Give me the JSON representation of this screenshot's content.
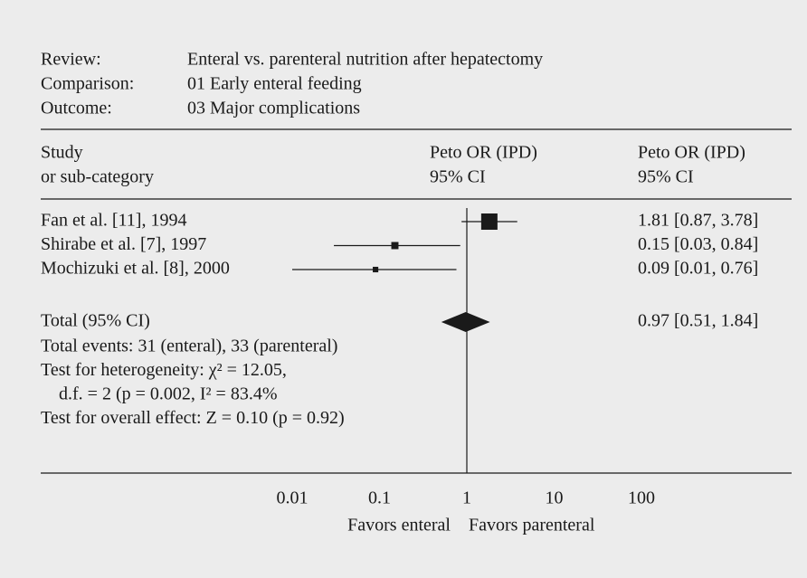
{
  "chart_data": {
    "type": "forest",
    "review_label": "Review:",
    "review": "Enteral vs. parenteral nutrition after hepatectomy",
    "comparison_label": "Comparison:",
    "comparison": "01 Early enteral feeding",
    "outcome_label": "Outcome:",
    "outcome": "03 Major complications",
    "study_header": [
      "Study",
      "or sub-category"
    ],
    "plot_header": [
      "Peto OR (IPD)",
      "95% CI"
    ],
    "value_header": [
      "Peto OR (IPD)",
      "95% CI"
    ],
    "categories": [
      "Fan et al. [11], 1994",
      "Shirabe et al. [7], 1997",
      "Mochizuki et al. [8], 2000"
    ],
    "values": [
      1.81,
      0.15,
      0.09
    ],
    "ci_lower": [
      0.87,
      0.03,
      0.01
    ],
    "ci_upper": [
      3.78,
      0.84,
      0.76
    ],
    "value_labels": [
      "1.81 [0.87, 3.78]",
      "0.15 [0.03, 0.84]",
      "0.09 [0.01, 0.76]"
    ],
    "total": {
      "label": "Total (95% CI)",
      "value": 0.97,
      "ci_lower": 0.51,
      "ci_upper": 1.84,
      "value_label": "0.97 [0.51, 1.84]"
    },
    "notes": [
      "Total events: 31 (enteral), 33 (parenteral)",
      "Test for heterogeneity: χ² = 12.05,",
      "d.f. = 2 (p = 0.002, I² = 83.4%",
      "Test for overall effect: Z = 0.10 (p = 0.92)"
    ],
    "log_scale": true,
    "xlim": [
      0.01,
      100
    ],
    "xticks": [
      0.01,
      0.1,
      1,
      10,
      100
    ],
    "favors_left": "Favors enteral",
    "favors_right": "Favors parenteral",
    "color": "#1a1a1a"
  }
}
